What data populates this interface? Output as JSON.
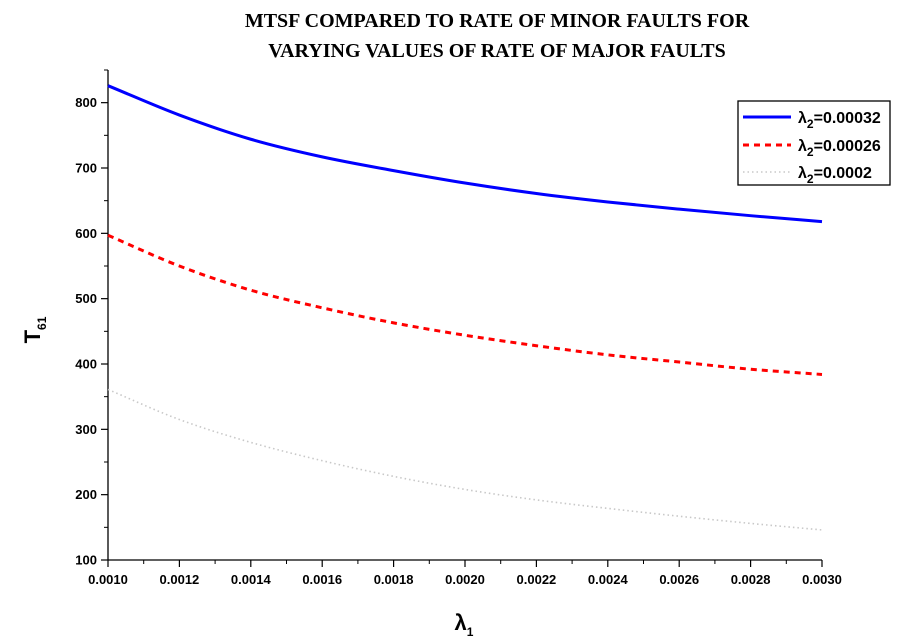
{
  "chart_data": {
    "type": "line",
    "title_lines": [
      "MTSF COMPARED TO RATE OF MINOR FAULTS FOR",
      "VARYING VALUES OF RATE OF MAJOR FAULTS"
    ],
    "xlabel": {
      "symbol": "λ",
      "subscript": "1"
    },
    "ylabel": {
      "symbol": "T",
      "subscript": "61"
    },
    "xlim": [
      0.001,
      0.003
    ],
    "ylim": [
      100,
      850
    ],
    "x_ticks": [
      "0.0010",
      "0.0012",
      "0.0014",
      "0.0016",
      "0.0018",
      "0.0020",
      "0.0022",
      "0.0024",
      "0.0026",
      "0.0028",
      "0.0030"
    ],
    "y_ticks": [
      100,
      200,
      300,
      400,
      500,
      600,
      700,
      800
    ],
    "grid": false,
    "legend_position": "top-right",
    "x": [
      0.001,
      0.0012,
      0.0014,
      0.0016,
      0.0018,
      0.002,
      0.0022,
      0.0024,
      0.0026,
      0.0028,
      0.003
    ],
    "series": [
      {
        "legend_symbol": "λ",
        "legend_subscript": "2",
        "legend_value": "=0.00032",
        "color": "#0000ff",
        "style": "solid",
        "values": [
          826,
          781,
          744,
          717,
          696,
          677,
          661,
          648,
          637,
          627,
          618
        ]
      },
      {
        "legend_symbol": "λ",
        "legend_subscript": "2",
        "legend_value": "=0.00026",
        "color": "#ff0000",
        "style": "dashed",
        "values": [
          597,
          550,
          513,
          486,
          463,
          444,
          428,
          414,
          403,
          392,
          384
        ]
      },
      {
        "legend_symbol": "λ",
        "legend_subscript": "2",
        "legend_value": "=0.0002",
        "color": "#c8c8c8",
        "style": "dotted",
        "values": [
          361,
          315,
          280,
          252,
          228,
          208,
          192,
          179,
          167,
          156,
          146
        ]
      }
    ]
  }
}
